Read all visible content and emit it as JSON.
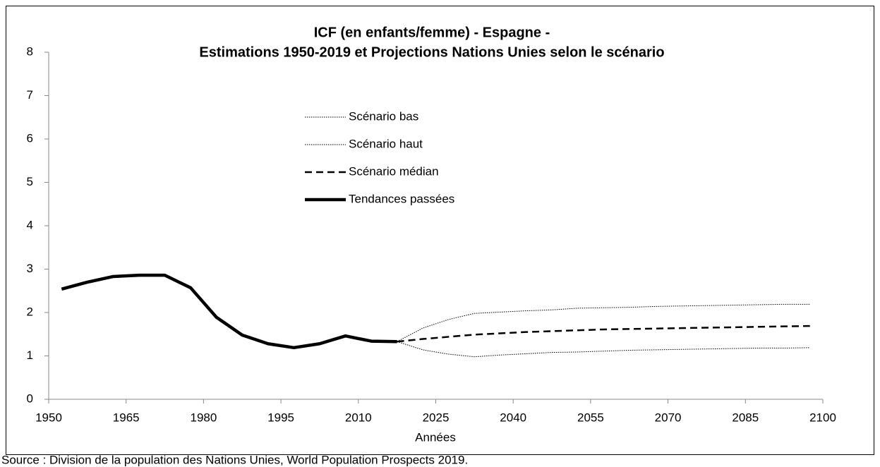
{
  "chart_data": {
    "type": "line",
    "title": [
      "ICF (en enfants/femme) - Espagne -",
      "Estimations 1950-2019 et Projections Nations Unies selon le scénario"
    ],
    "x_label": "Années",
    "source": "Source : Division de la population des Nations Unies, World Population Prospects 2019.",
    "x": [
      1952.5,
      1957.5,
      1962.5,
      1967.5,
      1972.5,
      1977.5,
      1982.5,
      1987.5,
      1992.5,
      1997.5,
      2002.5,
      2007.5,
      2012.5,
      2017.5,
      2022.5,
      2027.5,
      2032.5,
      2037.5,
      2042.5,
      2047.5,
      2052.5,
      2057.5,
      2062.5,
      2067.5,
      2072.5,
      2077.5,
      2082.5,
      2087.5,
      2092.5,
      2097.5
    ],
    "series": [
      {
        "name": "Scénario bas",
        "color": "#000000",
        "line_style": "dotted",
        "values": [
          null,
          null,
          null,
          null,
          null,
          null,
          null,
          null,
          null,
          null,
          null,
          null,
          null,
          1.33,
          1.14,
          1.04,
          0.98,
          1.02,
          1.05,
          1.08,
          1.09,
          1.11,
          1.13,
          1.14,
          1.15,
          1.16,
          1.17,
          1.18,
          1.18,
          1.19
        ]
      },
      {
        "name": "Scénario haut",
        "color": "#000000",
        "line_style": "dotted",
        "values": [
          null,
          null,
          null,
          null,
          null,
          null,
          null,
          null,
          null,
          null,
          null,
          null,
          null,
          1.33,
          1.64,
          1.84,
          1.98,
          2.01,
          2.04,
          2.06,
          2.1,
          2.11,
          2.12,
          2.14,
          2.15,
          2.16,
          2.17,
          2.18,
          2.19,
          2.19
        ]
      },
      {
        "name": "Scénario médian",
        "color": "#000000",
        "line_style": "dashed",
        "values": [
          null,
          null,
          null,
          null,
          null,
          null,
          null,
          null,
          null,
          null,
          null,
          null,
          null,
          1.33,
          1.39,
          1.44,
          1.49,
          1.52,
          1.55,
          1.57,
          1.59,
          1.61,
          1.62,
          1.63,
          1.64,
          1.65,
          1.66,
          1.67,
          1.68,
          1.69
        ]
      },
      {
        "name": "Tendances passées",
        "color": "#000000",
        "line_style": "solid",
        "values": [
          2.54,
          2.7,
          2.83,
          2.86,
          2.86,
          2.57,
          1.89,
          1.48,
          1.28,
          1.19,
          1.28,
          1.46,
          1.34,
          1.33,
          null,
          null,
          null,
          null,
          null,
          null,
          null,
          null,
          null,
          null,
          null,
          null,
          null,
          null,
          null,
          null
        ]
      }
    ],
    "xlim": [
      1950,
      2100
    ],
    "xticks": [
      1950,
      1965,
      1980,
      1995,
      2010,
      2025,
      2040,
      2055,
      2070,
      2085,
      2100
    ],
    "ylim": [
      0,
      8
    ],
    "yticks": [
      0,
      1,
      2,
      3,
      4,
      5,
      6,
      7,
      8
    ],
    "grid": false
  }
}
